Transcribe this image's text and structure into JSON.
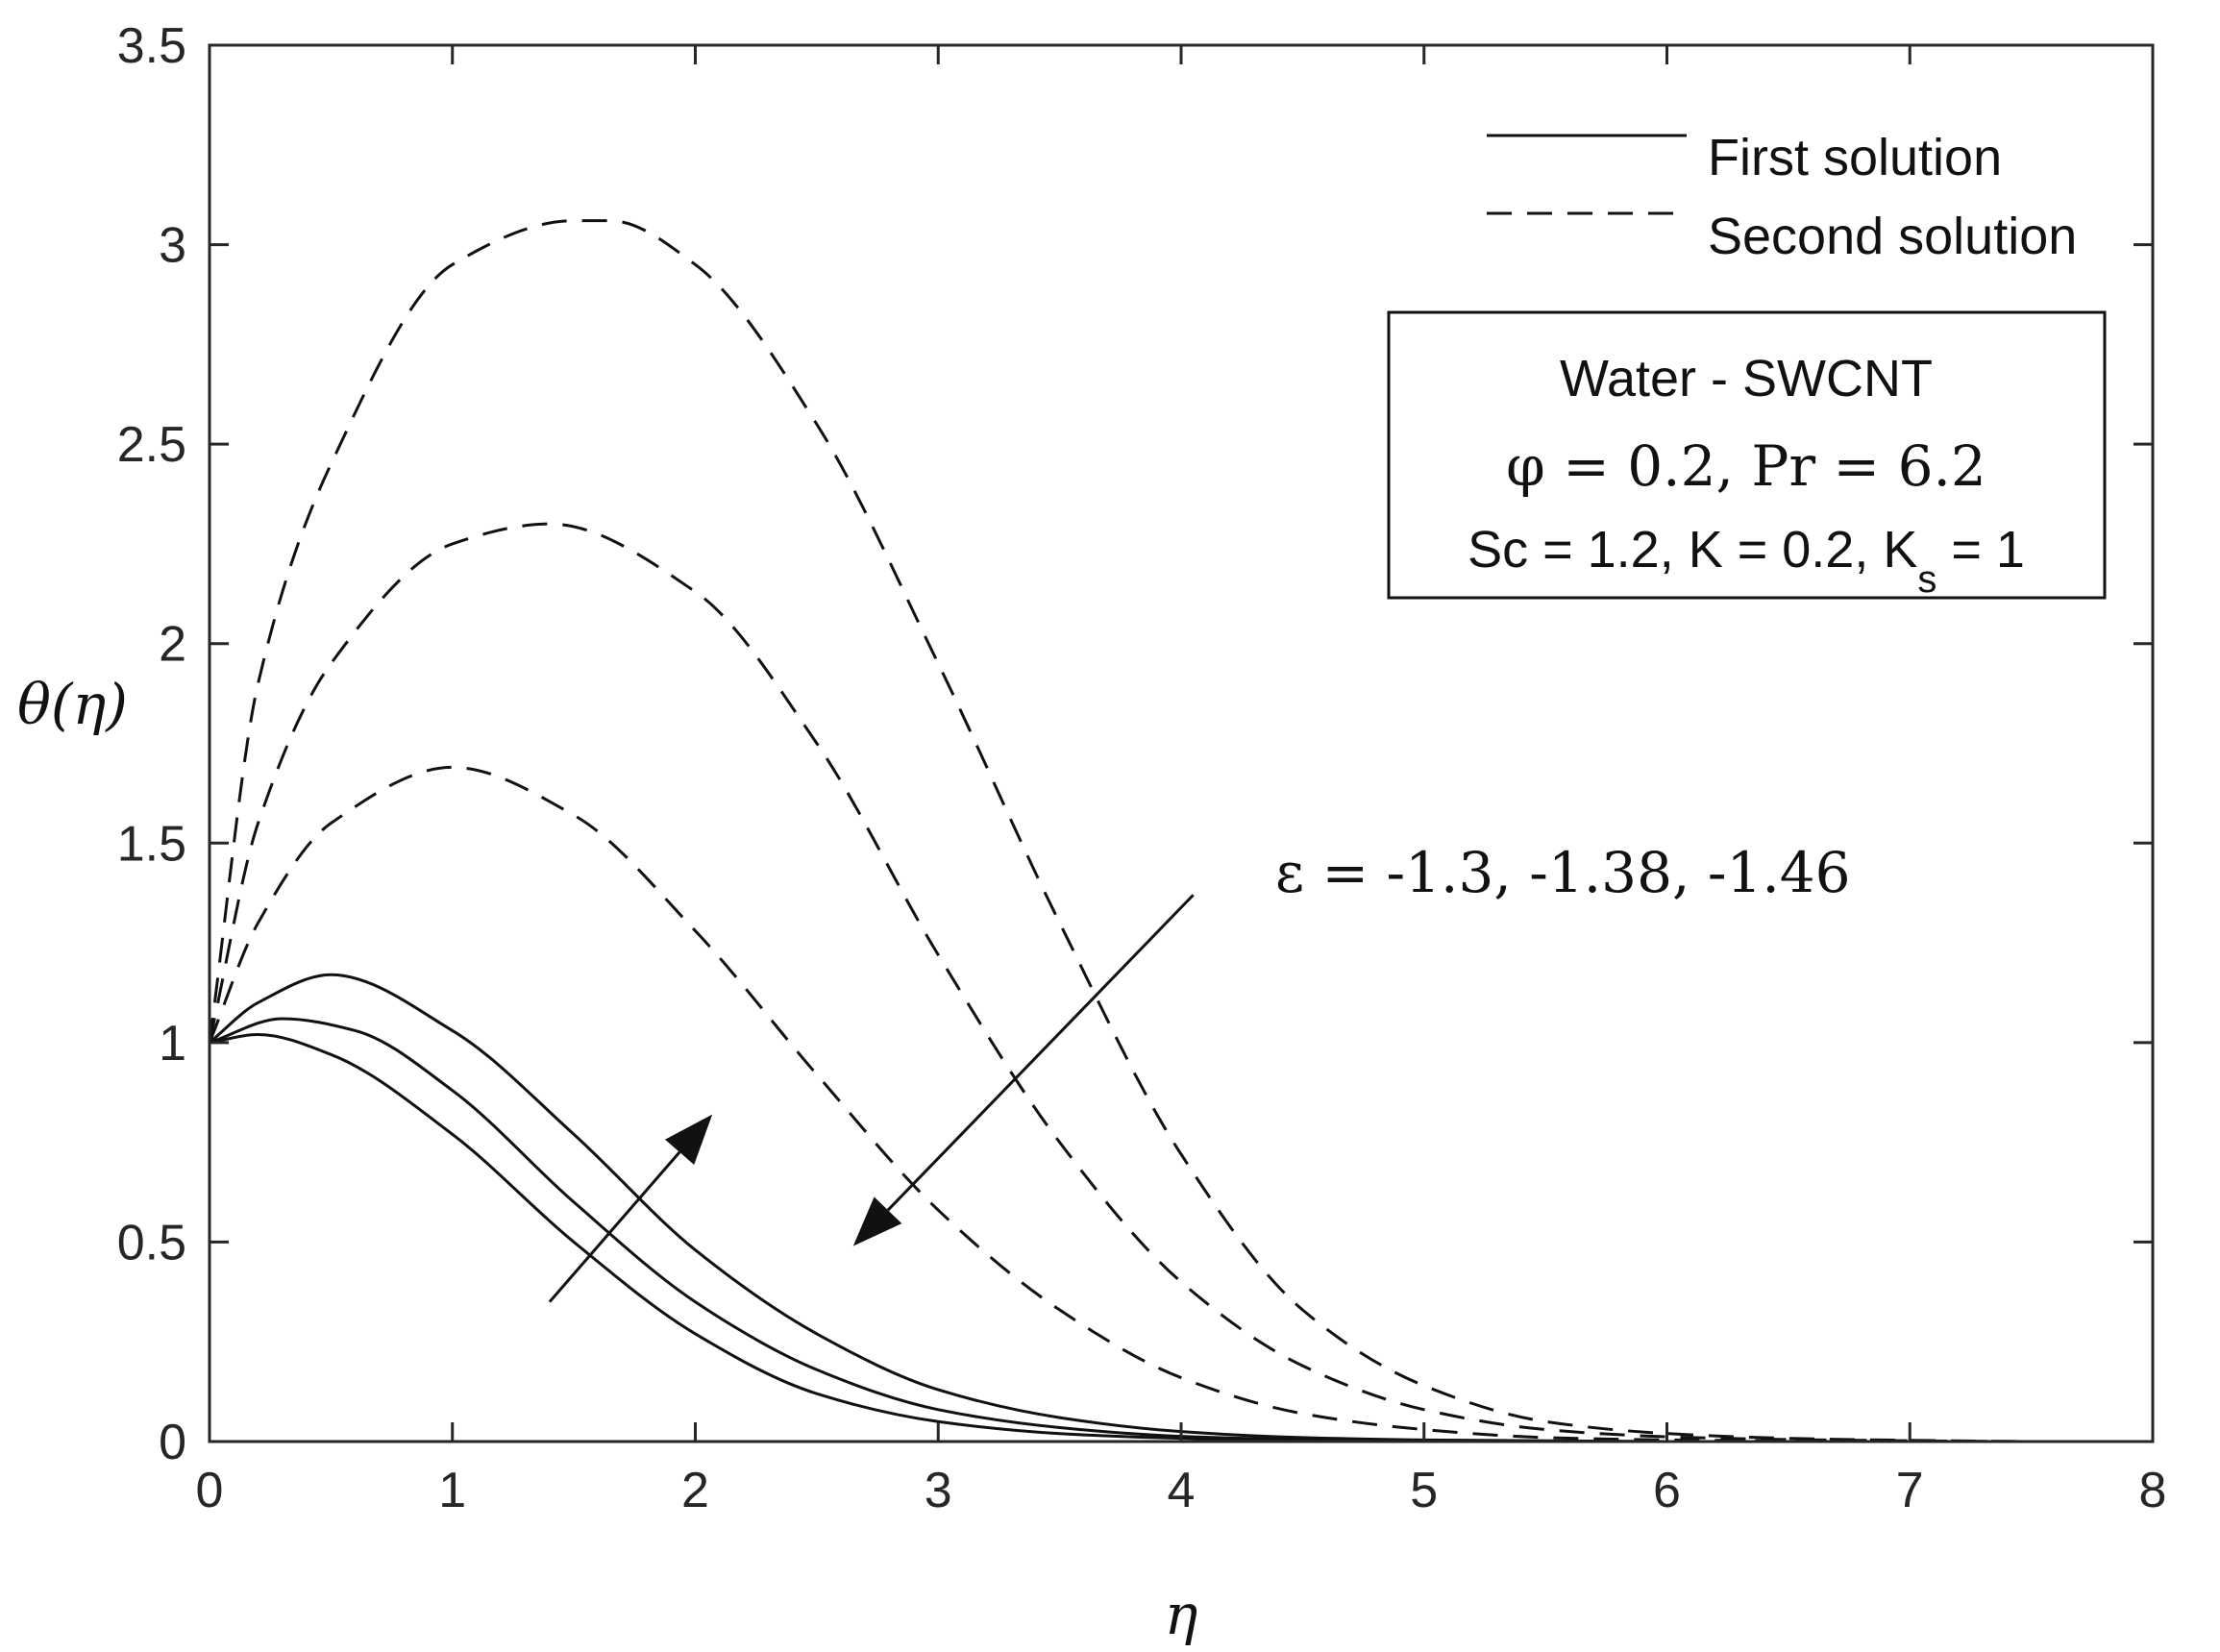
{
  "chart_data": {
    "type": "line",
    "xlabel": "η",
    "ylabel": "θ(η)",
    "xlim": [
      0,
      8
    ],
    "ylim": [
      0,
      3.5
    ],
    "xticks": [
      "0",
      "1",
      "2",
      "3",
      "4",
      "5",
      "6",
      "7",
      "8"
    ],
    "yticks": [
      "0",
      "0.5",
      "1",
      "1.5",
      "2",
      "2.5",
      "3",
      "3.5"
    ],
    "grid": false,
    "legend": {
      "placement": "top-right",
      "first_label": "First solution",
      "second_label": "Second solution"
    },
    "annotation_box": {
      "line1": "Water - SWCNT",
      "line2": "φ = 0.2, Pr = 6.2",
      "line3_main": "Sc = 1.2, K = 0.2, K",
      "line3_sub": "s",
      "line3_end": " = 1"
    },
    "epsilon_label": "ε = -1.3, -1.38, -1.46",
    "series": [
      {
        "name": "First solution, ε = -1.3",
        "style": "solid",
        "x": [
          0,
          0.2,
          0.5,
          1,
          1.5,
          2,
          2.5,
          3,
          3.5,
          4,
          4.5,
          5,
          6,
          7,
          7.5
        ],
        "y": [
          1.0,
          1.1,
          1.17,
          1.03,
          0.77,
          0.48,
          0.27,
          0.13,
          0.06,
          0.025,
          0.01,
          0.004,
          0.0,
          0.0,
          0.0
        ]
      },
      {
        "name": "First solution, ε = -1.38",
        "style": "solid",
        "x": [
          0,
          0.3,
          0.6,
          1,
          1.5,
          2,
          2.5,
          3,
          3.5,
          4,
          4.5,
          5,
          6,
          7,
          7.5
        ],
        "y": [
          1.0,
          1.06,
          1.03,
          0.88,
          0.6,
          0.35,
          0.18,
          0.08,
          0.035,
          0.013,
          0.005,
          0.002,
          0.0,
          0.0,
          0.0
        ]
      },
      {
        "name": "First solution, ε = -1.46",
        "style": "solid",
        "x": [
          0,
          0.2,
          0.5,
          1,
          1.5,
          2,
          2.5,
          3,
          3.5,
          4,
          4.5,
          5,
          6,
          7,
          7.5
        ],
        "y": [
          1.0,
          1.02,
          0.97,
          0.77,
          0.5,
          0.27,
          0.12,
          0.05,
          0.02,
          0.008,
          0.003,
          0.001,
          0.0,
          0.0,
          0.0
        ]
      },
      {
        "name": "Second solution, ε = -1.3",
        "style": "dashed",
        "x": [
          0,
          0.2,
          0.5,
          1,
          1.5,
          1.65,
          2,
          2.5,
          3,
          3.5,
          4,
          4.5,
          5,
          5.5,
          6,
          6.5,
          7,
          7.5
        ],
        "y": [
          1.0,
          1.9,
          2.45,
          2.95,
          3.06,
          3.06,
          2.95,
          2.55,
          1.95,
          1.3,
          0.72,
          0.33,
          0.14,
          0.05,
          0.02,
          0.008,
          0.003,
          0.0
        ]
      },
      {
        "name": "Second solution, ε = -1.38",
        "style": "dashed",
        "x": [
          0,
          0.2,
          0.5,
          1,
          1.4,
          2,
          2.5,
          3,
          3.5,
          4,
          4.5,
          5,
          5.5,
          6,
          6.5,
          7,
          7.5
        ],
        "y": [
          1.0,
          1.55,
          1.95,
          2.25,
          2.3,
          2.13,
          1.75,
          1.22,
          0.75,
          0.4,
          0.19,
          0.08,
          0.03,
          0.012,
          0.005,
          0.002,
          0.0
        ]
      },
      {
        "name": "Second solution, ε = -1.46",
        "style": "dashed",
        "x": [
          0,
          0.2,
          0.5,
          1,
          1.5,
          2,
          2.5,
          3,
          3.5,
          4,
          4.5,
          5,
          5.5,
          6,
          6.5,
          7,
          7.5
        ],
        "y": [
          1.0,
          1.3,
          1.55,
          1.69,
          1.57,
          1.28,
          0.92,
          0.58,
          0.33,
          0.16,
          0.07,
          0.03,
          0.01,
          0.004,
          0.002,
          0.0,
          0.0
        ]
      }
    ],
    "arrows": [
      {
        "name": "first-solution-arrow",
        "from": [
          1.4,
          0.35
        ],
        "to": [
          2.07,
          0.82
        ]
      },
      {
        "name": "second-solution-arrow",
        "from": [
          4.05,
          1.37
        ],
        "to": [
          2.65,
          0.49
        ]
      }
    ]
  }
}
